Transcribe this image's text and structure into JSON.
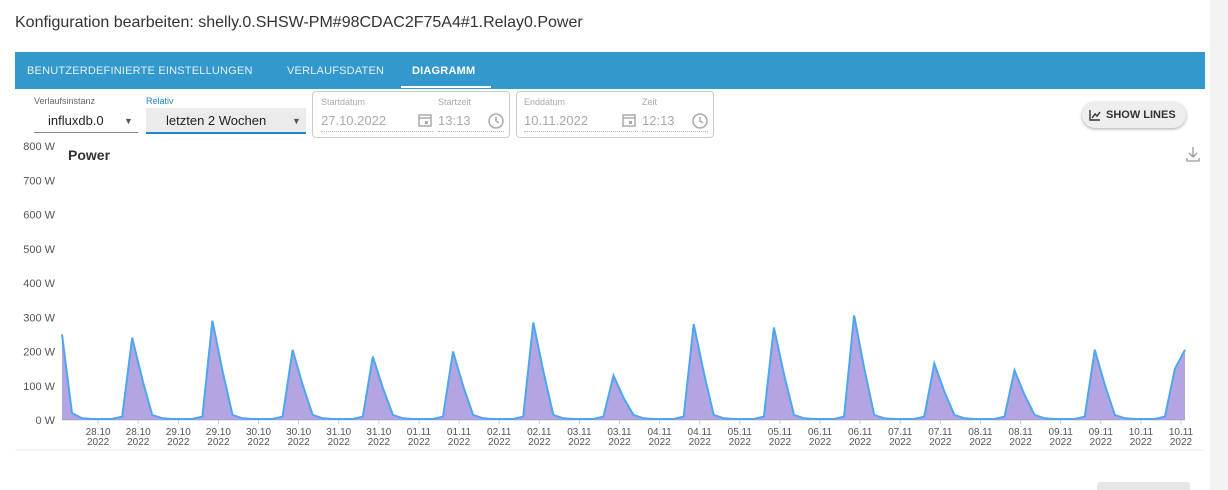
{
  "header": {
    "title": "Konfiguration bearbeiten: shelly.0.SHSW-PM#98CDAC2F75A4#1.Relay0.Power"
  },
  "tabs": {
    "items": [
      "BENUTZERDEFINIERTE EINSTELLUNGEN",
      "VERLAUFSDATEN",
      "DIAGRAMM"
    ],
    "active": 2
  },
  "controls": {
    "instance": {
      "label": "Verlaufsinstanz",
      "value": "influxdb.0"
    },
    "relative": {
      "label": "Relativ",
      "value": "letzten 2 Wochen"
    },
    "start_date": {
      "label": "Startdatum",
      "value": "27.10.2022"
    },
    "start_time": {
      "label": "Startzeit",
      "value": "13:13"
    },
    "end_date": {
      "label": "Enddatum",
      "value": "10.11.2022"
    },
    "end_time": {
      "label": "Zeit",
      "value": "12:13"
    },
    "button": "SHOW LINES"
  },
  "chart_data": {
    "type": "area",
    "title": "Power",
    "color": "#4ea6ee",
    "fill_color": "#9a86d8",
    "x": [
      0,
      3,
      6,
      9,
      12,
      15,
      18,
      21,
      24,
      27,
      30,
      33,
      36,
      39,
      42,
      45,
      48,
      51,
      54,
      57,
      60,
      63,
      66,
      69,
      72,
      75,
      78,
      81,
      84,
      87,
      90,
      93,
      96,
      99,
      102,
      105,
      108,
      111,
      114,
      117,
      120,
      123,
      126,
      129,
      132,
      135,
      138,
      141,
      144,
      147,
      150,
      153,
      156,
      159,
      162,
      165,
      168,
      171,
      174,
      177,
      180,
      183,
      186,
      189,
      192,
      195,
      198,
      201,
      204,
      207,
      210,
      213,
      216,
      219,
      222,
      225,
      228,
      231,
      234,
      237,
      240,
      243,
      246,
      249,
      252,
      255,
      258,
      261,
      264,
      267,
      270,
      273,
      276,
      279,
      282,
      285,
      288,
      291,
      294,
      297,
      300,
      303,
      306,
      309,
      312,
      315,
      318,
      321,
      324,
      327,
      330,
      333,
      336
    ],
    "values": [
      250,
      20,
      5,
      3,
      3,
      3,
      10,
      240,
      120,
      15,
      5,
      3,
      3,
      3,
      10,
      290,
      145,
      15,
      5,
      3,
      3,
      3,
      10,
      205,
      103,
      15,
      5,
      3,
      3,
      3,
      10,
      185,
      93,
      15,
      5,
      3,
      3,
      3,
      10,
      200,
      100,
      15,
      5,
      3,
      3,
      3,
      10,
      285,
      143,
      15,
      5,
      3,
      3,
      3,
      10,
      130,
      65,
      15,
      5,
      3,
      3,
      3,
      10,
      280,
      140,
      15,
      5,
      3,
      3,
      3,
      10,
      270,
      135,
      15,
      5,
      3,
      3,
      3,
      10,
      305,
      153,
      15,
      5,
      3,
      3,
      3,
      10,
      165,
      83,
      15,
      5,
      3,
      3,
      3,
      10,
      145,
      73,
      15,
      5,
      3,
      3,
      3,
      10,
      205,
      103,
      15,
      5,
      3,
      3,
      3,
      10,
      150,
      205
    ],
    "xlim": [
      0,
      336
    ],
    "xticks": [
      {
        "value": 10.8,
        "label": "28.10",
        "sublabel": "2022"
      },
      {
        "value": 22.8,
        "label": "28.10",
        "sublabel": "2022"
      },
      {
        "value": 34.8,
        "label": "29.10",
        "sublabel": "2022"
      },
      {
        "value": 46.8,
        "label": "29.10",
        "sublabel": "2022"
      },
      {
        "value": 58.8,
        "label": "30.10",
        "sublabel": "2022"
      },
      {
        "value": 70.8,
        "label": "30.10",
        "sublabel": "2022"
      },
      {
        "value": 82.8,
        "label": "31.10",
        "sublabel": "2022"
      },
      {
        "value": 94.8,
        "label": "31.10",
        "sublabel": "2022"
      },
      {
        "value": 106.8,
        "label": "01.11",
        "sublabel": "2022"
      },
      {
        "value": 118.8,
        "label": "01.11",
        "sublabel": "2022"
      },
      {
        "value": 130.8,
        "label": "02.11",
        "sublabel": "2022"
      },
      {
        "value": 142.8,
        "label": "02.11",
        "sublabel": "2022"
      },
      {
        "value": 154.8,
        "label": "03.11",
        "sublabel": "2022"
      },
      {
        "value": 166.8,
        "label": "03.11",
        "sublabel": "2022"
      },
      {
        "value": 178.8,
        "label": "04.11",
        "sublabel": "2022"
      },
      {
        "value": 190.8,
        "label": "04.11",
        "sublabel": "2022"
      },
      {
        "value": 202.8,
        "label": "05.11",
        "sublabel": "2022"
      },
      {
        "value": 214.8,
        "label": "05.11",
        "sublabel": "2022"
      },
      {
        "value": 226.8,
        "label": "06.11",
        "sublabel": "2022"
      },
      {
        "value": 238.8,
        "label": "06.11",
        "sublabel": "2022"
      },
      {
        "value": 250.8,
        "label": "07.11",
        "sublabel": "2022"
      },
      {
        "value": 262.8,
        "label": "07.11",
        "sublabel": "2022"
      },
      {
        "value": 274.8,
        "label": "08.11",
        "sublabel": "2022"
      },
      {
        "value": 286.8,
        "label": "08.11",
        "sublabel": "2022"
      },
      {
        "value": 298.8,
        "label": "09.11",
        "sublabel": "2022"
      },
      {
        "value": 310.8,
        "label": "09.11",
        "sublabel": "2022"
      },
      {
        "value": 322.8,
        "label": "10.11",
        "sublabel": "2022"
      },
      {
        "value": 334.8,
        "label": "10.11",
        "sublabel": "2022"
      }
    ],
    "ylim": [
      0,
      800
    ],
    "yticks": [
      {
        "value": 0,
        "label": "0 W"
      },
      {
        "value": 100,
        "label": "100 W"
      },
      {
        "value": 200,
        "label": "200 W"
      },
      {
        "value": 300,
        "label": "300 W"
      },
      {
        "value": 400,
        "label": "400 W"
      },
      {
        "value": 500,
        "label": "500 W"
      },
      {
        "value": 600,
        "label": "600 W"
      },
      {
        "value": 700,
        "label": "700 W"
      },
      {
        "value": 800,
        "label": "800 W"
      }
    ],
    "grid": false
  }
}
